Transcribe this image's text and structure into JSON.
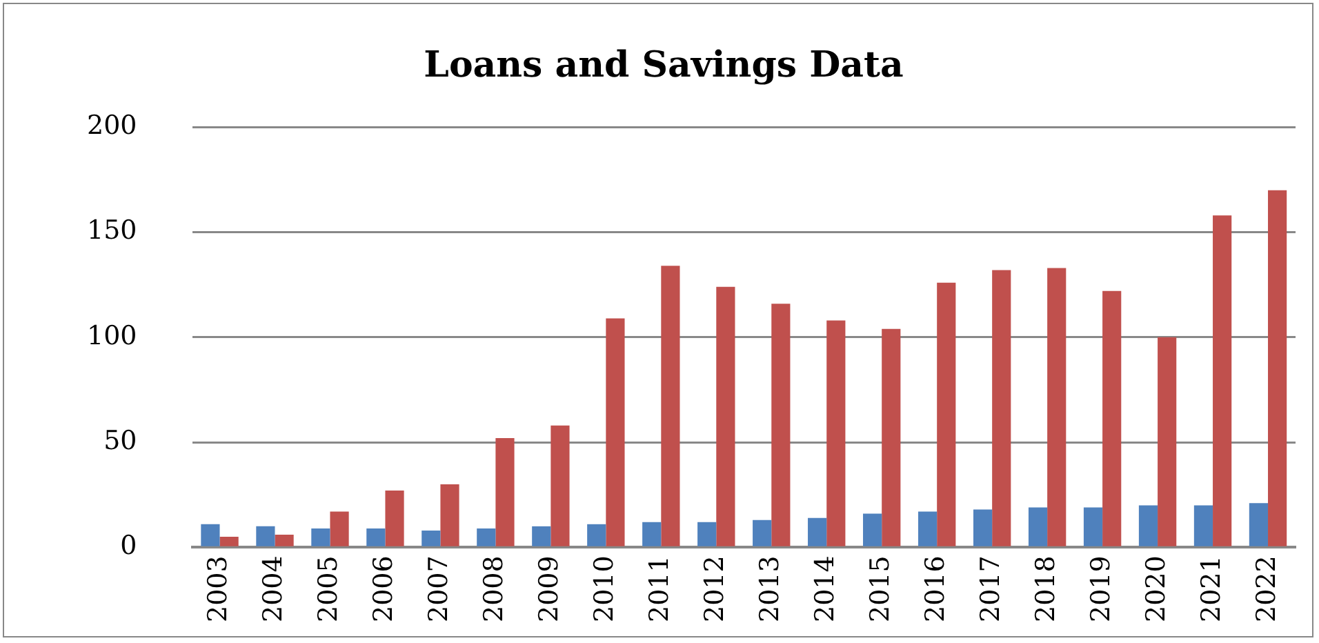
{
  "chart_data": {
    "type": "bar",
    "title": "Loans and Savings Data",
    "categories": [
      "2003",
      "2004",
      "2005",
      "2006",
      "2007",
      "2008",
      "2009",
      "2010",
      "2011",
      "2012",
      "2013",
      "2014",
      "2015",
      "2016",
      "2017",
      "2018",
      "2019",
      "2020",
      "2021",
      "2022"
    ],
    "series": [
      {
        "color": "#4f81bd",
        "values": [
          11,
          10,
          9,
          9,
          8,
          9,
          10,
          11,
          12,
          12,
          13,
          14,
          16,
          17,
          18,
          19,
          19,
          20,
          20,
          21
        ]
      },
      {
        "color": "#c0504d",
        "values": [
          5,
          6,
          17,
          27,
          30,
          52,
          58,
          109,
          134,
          124,
          116,
          108,
          104,
          126,
          132,
          133,
          122,
          100,
          158,
          170
        ]
      }
    ],
    "ylim": [
      0,
      200
    ],
    "yticks": [
      0,
      50,
      100,
      150,
      200
    ],
    "grid": "y",
    "legend": false
  }
}
